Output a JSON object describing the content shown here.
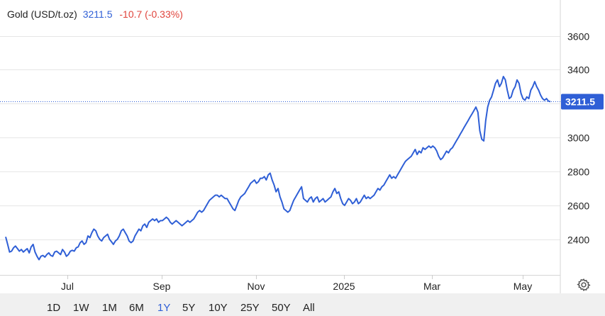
{
  "header": {
    "symbol": "Gold (USD/t.oz)",
    "price": "3211.5",
    "change": "-10.7 (-0.33%)"
  },
  "range_buttons": [
    "1D",
    "1W",
    "1M",
    "6M",
    "1Y",
    "5Y",
    "10Y",
    "25Y",
    "50Y",
    "All"
  ],
  "active_range": "1Y",
  "colors": {
    "line": "#2f5fd6",
    "badge": "#2f5fd6",
    "change": "#e0443c",
    "grid": "#e6e6e6"
  },
  "chart_data": {
    "type": "line",
    "x_labels": [
      "Jul",
      "Sep",
      "Nov",
      "2025",
      "Mar",
      "May"
    ],
    "yticks": [
      2400,
      2600,
      2800,
      3000,
      3200,
      3400,
      3600
    ],
    "ylim": [
      2190,
      3640
    ],
    "last_value_label": "3211.5",
    "last_value": 3211.5,
    "series": [
      {
        "values": [
          2415,
          2370,
          2325,
          2330,
          2350,
          2360,
          2345,
          2330,
          2340,
          2325,
          2335,
          2345,
          2320,
          2355,
          2370,
          2325,
          2300,
          2280,
          2300,
          2305,
          2295,
          2310,
          2320,
          2305,
          2300,
          2325,
          2330,
          2320,
          2310,
          2340,
          2325,
          2300,
          2310,
          2330,
          2335,
          2330,
          2350,
          2355,
          2380,
          2390,
          2370,
          2380,
          2420,
          2410,
          2440,
          2460,
          2450,
          2420,
          2400,
          2390,
          2410,
          2420,
          2430,
          2400,
          2385,
          2370,
          2390,
          2400,
          2420,
          2450,
          2460,
          2440,
          2420,
          2390,
          2380,
          2390,
          2420,
          2440,
          2460,
          2450,
          2480,
          2490,
          2470,
          2500,
          2510,
          2520,
          2510,
          2520,
          2500,
          2510,
          2510,
          2520,
          2530,
          2520,
          2500,
          2490,
          2500,
          2510,
          2500,
          2490,
          2480,
          2490,
          2500,
          2510,
          2500,
          2510,
          2520,
          2540,
          2560,
          2570,
          2560,
          2570,
          2590,
          2610,
          2630,
          2640,
          2650,
          2660,
          2660,
          2650,
          2660,
          2650,
          2640,
          2640,
          2620,
          2600,
          2580,
          2570,
          2600,
          2630,
          2650,
          2660,
          2670,
          2690,
          2710,
          2730,
          2740,
          2750,
          2730,
          2740,
          2760,
          2760,
          2770,
          2750,
          2780,
          2790,
          2750,
          2720,
          2680,
          2700,
          2650,
          2620,
          2580,
          2570,
          2560,
          2570,
          2600,
          2630,
          2650,
          2670,
          2690,
          2710,
          2640,
          2630,
          2620,
          2640,
          2650,
          2620,
          2640,
          2650,
          2620,
          2630,
          2640,
          2620,
          2630,
          2640,
          2650,
          2680,
          2700,
          2670,
          2680,
          2640,
          2610,
          2600,
          2620,
          2640,
          2630,
          2610,
          2620,
          2640,
          2610,
          2620,
          2640,
          2660,
          2640,
          2650,
          2640,
          2650,
          2660,
          2680,
          2700,
          2690,
          2710,
          2720,
          2740,
          2760,
          2780,
          2760,
          2770,
          2760,
          2780,
          2800,
          2820,
          2840,
          2860,
          2870,
          2880,
          2890,
          2910,
          2930,
          2900,
          2920,
          2910,
          2940,
          2930,
          2940,
          2950,
          2940,
          2950,
          2940,
          2920,
          2890,
          2870,
          2880,
          2900,
          2920,
          2910,
          2930,
          2940,
          2960,
          2980,
          3000,
          3020,
          3040,
          3060,
          3080,
          3100,
          3120,
          3140,
          3160,
          3180,
          3150,
          3040,
          2990,
          2980,
          3100,
          3180,
          3220,
          3240,
          3280,
          3320,
          3340,
          3300,
          3320,
          3360,
          3340,
          3280,
          3230,
          3240,
          3280,
          3300,
          3340,
          3320,
          3260,
          3230,
          3220,
          3240,
          3230,
          3280,
          3300,
          3330,
          3300,
          3280,
          3250,
          3230,
          3220,
          3230,
          3215,
          3211.5
        ]
      }
    ]
  }
}
